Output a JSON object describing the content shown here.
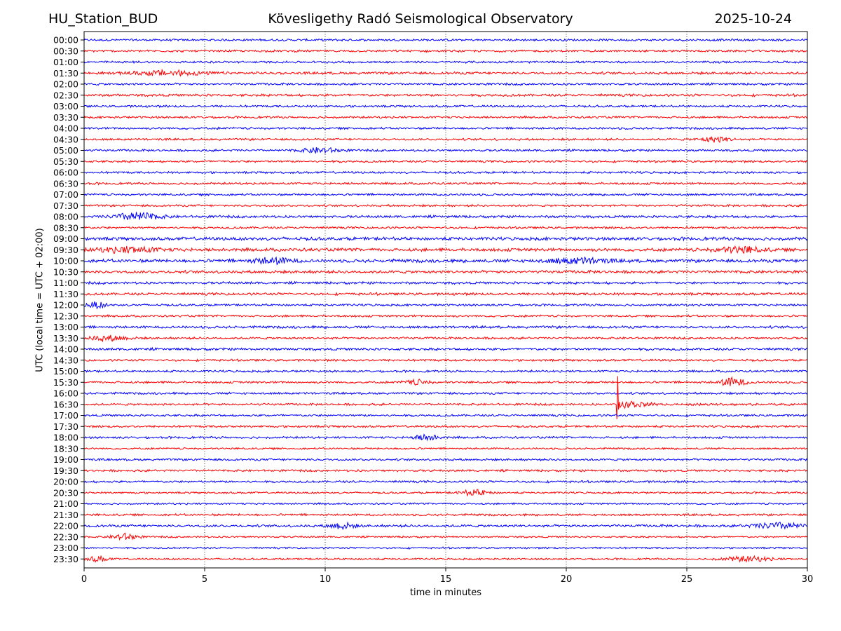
{
  "header": {
    "station": "HU_Station_BUD",
    "observatory": "Kövesligethy Radó Seismological Observatory",
    "date": "2025-10-24"
  },
  "chart_data": {
    "type": "line",
    "title": "Kövesligethy Radó Seismological Observatory",
    "xlabel": "time in minutes",
    "ylabel": "UTC (local time = UTC + 02:00)",
    "xlim": [
      0,
      30
    ],
    "x_ticks": [
      "0",
      "5",
      "10",
      "15",
      "20",
      "25",
      "30"
    ],
    "x_tick_values": [
      0,
      5,
      10,
      15,
      20,
      25,
      30
    ],
    "grid": "vertical dotted",
    "trace_colors": [
      "#0000ff",
      "#ff0000"
    ],
    "rows": [
      "00:00",
      "00:30",
      "01:00",
      "01:30",
      "02:00",
      "02:30",
      "03:00",
      "03:30",
      "04:00",
      "04:30",
      "05:00",
      "05:30",
      "06:00",
      "06:30",
      "07:00",
      "07:30",
      "08:00",
      "08:30",
      "09:00",
      "09:30",
      "10:00",
      "10:30",
      "11:00",
      "11:30",
      "12:00",
      "12:30",
      "13:00",
      "13:30",
      "14:00",
      "14:30",
      "15:00",
      "15:30",
      "16:00",
      "16:30",
      "17:00",
      "17:30",
      "18:00",
      "18:30",
      "19:00",
      "19:30",
      "20:00",
      "20:30",
      "21:00",
      "21:30",
      "22:00",
      "22:30",
      "23:00",
      "23:30"
    ],
    "row_noise": [
      0.6,
      0.6,
      0.6,
      0.7,
      0.6,
      0.7,
      0.6,
      0.6,
      0.6,
      0.6,
      0.6,
      0.6,
      0.6,
      0.6,
      0.6,
      0.6,
      0.7,
      0.6,
      0.9,
      0.9,
      0.9,
      0.8,
      0.7,
      0.7,
      0.6,
      0.6,
      0.7,
      0.6,
      0.7,
      0.6,
      0.6,
      0.6,
      0.6,
      0.6,
      0.6,
      0.6,
      0.6,
      0.5,
      0.6,
      0.6,
      0.6,
      0.5,
      0.5,
      0.6,
      0.7,
      0.5,
      0.5,
      0.5
    ],
    "bursts": [
      {
        "row": "01:30",
        "minute": 3.5,
        "amp": 1.4,
        "width": 1.5
      },
      {
        "row": "04:30",
        "minute": 26.2,
        "amp": 1.6,
        "width": 0.6
      },
      {
        "row": "05:00",
        "minute": 9.8,
        "amp": 1.5,
        "width": 0.8
      },
      {
        "row": "08:00",
        "minute": 2.2,
        "amp": 2.4,
        "width": 0.9
      },
      {
        "row": "09:30",
        "minute": 1.8,
        "amp": 1.6,
        "width": 1.2
      },
      {
        "row": "09:30",
        "minute": 27.2,
        "amp": 2.0,
        "width": 0.9
      },
      {
        "row": "10:00",
        "minute": 7.8,
        "amp": 1.8,
        "width": 0.8
      },
      {
        "row": "10:00",
        "minute": 20.5,
        "amp": 1.6,
        "width": 1.2
      },
      {
        "row": "12:00",
        "minute": 0.5,
        "amp": 1.8,
        "width": 0.4
      },
      {
        "row": "13:30",
        "minute": 1.0,
        "amp": 1.5,
        "width": 0.8
      },
      {
        "row": "15:30",
        "minute": 26.9,
        "amp": 2.8,
        "width": 0.5
      },
      {
        "row": "15:30",
        "minute": 13.8,
        "amp": 1.4,
        "width": 0.5
      },
      {
        "row": "18:00",
        "minute": 14.2,
        "amp": 1.8,
        "width": 0.5
      },
      {
        "row": "20:30",
        "minute": 16.2,
        "amp": 1.7,
        "width": 0.6
      },
      {
        "row": "22:00",
        "minute": 10.7,
        "amp": 1.8,
        "width": 0.5
      },
      {
        "row": "22:00",
        "minute": 28.8,
        "amp": 1.8,
        "width": 1.0
      },
      {
        "row": "22:30",
        "minute": 1.7,
        "amp": 2.0,
        "width": 0.5
      },
      {
        "row": "23:30",
        "minute": 0.6,
        "amp": 1.6,
        "width": 0.4
      },
      {
        "row": "23:30",
        "minute": 27.5,
        "amp": 1.5,
        "width": 1.0
      }
    ],
    "earthquake": {
      "row": "16:30",
      "minute": 22.1,
      "amp_up": 44,
      "amp_down": 30,
      "decay_minutes": 2.5
    }
  }
}
